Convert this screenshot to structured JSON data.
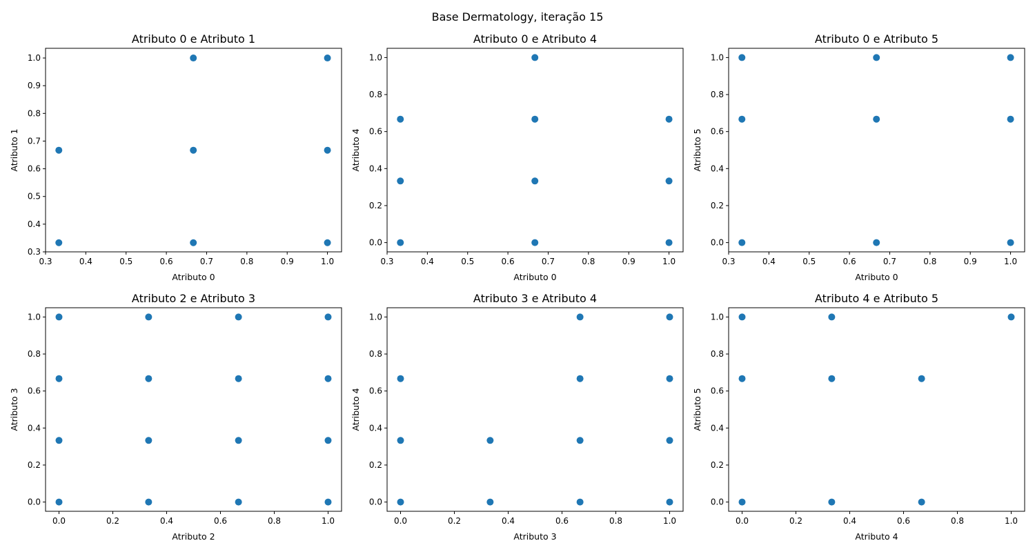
{
  "figure": {
    "title": "Base Dermatology, iteração 15",
    "marker_color": "#1f77b4"
  },
  "chart_data": [
    {
      "type": "scatter",
      "title": "Atributo 0 e Atributo 1",
      "xlabel": "Atributo 0",
      "ylabel": "Atributo 1",
      "xlim": [
        0.3,
        1.035
      ],
      "ylim": [
        0.3,
        1.035
      ],
      "xticks": [
        0.3,
        0.4,
        0.5,
        0.6,
        0.7,
        0.8,
        0.9,
        1.0
      ],
      "yticks": [
        0.3,
        0.4,
        0.5,
        0.6,
        0.7,
        0.8,
        0.9,
        1.0
      ],
      "points": [
        [
          0.333,
          0.333
        ],
        [
          0.333,
          0.667
        ],
        [
          0.667,
          0.333
        ],
        [
          0.667,
          0.667
        ],
        [
          0.667,
          1.0
        ],
        [
          1.0,
          0.333
        ],
        [
          1.0,
          0.667
        ],
        [
          1.0,
          1.0
        ]
      ]
    },
    {
      "type": "scatter",
      "title": "Atributo 0 e Atributo 4",
      "xlabel": "Atributo 0",
      "ylabel": "Atributo 4",
      "xlim": [
        0.3,
        1.035
      ],
      "ylim": [
        -0.05,
        1.05
      ],
      "xticks": [
        0.3,
        0.4,
        0.5,
        0.6,
        0.7,
        0.8,
        0.9,
        1.0
      ],
      "yticks": [
        0.0,
        0.2,
        0.4,
        0.6,
        0.8,
        1.0
      ],
      "points": [
        [
          0.333,
          0.0
        ],
        [
          0.333,
          0.333
        ],
        [
          0.333,
          0.667
        ],
        [
          0.667,
          0.0
        ],
        [
          0.667,
          0.333
        ],
        [
          0.667,
          0.667
        ],
        [
          0.667,
          1.0
        ],
        [
          1.0,
          0.0
        ],
        [
          1.0,
          0.333
        ],
        [
          1.0,
          0.667
        ]
      ]
    },
    {
      "type": "scatter",
      "title": "Atributo 0 e Atributo 5",
      "xlabel": "Atributo 0",
      "ylabel": "Atributo 5",
      "xlim": [
        0.3,
        1.035
      ],
      "ylim": [
        -0.05,
        1.05
      ],
      "xticks": [
        0.3,
        0.4,
        0.5,
        0.6,
        0.7,
        0.8,
        0.9,
        1.0
      ],
      "yticks": [
        0.0,
        0.2,
        0.4,
        0.6,
        0.8,
        1.0
      ],
      "points": [
        [
          0.333,
          0.0
        ],
        [
          0.333,
          0.667
        ],
        [
          0.333,
          1.0
        ],
        [
          0.667,
          0.0
        ],
        [
          0.667,
          0.667
        ],
        [
          0.667,
          1.0
        ],
        [
          1.0,
          0.0
        ],
        [
          1.0,
          0.667
        ],
        [
          1.0,
          1.0
        ]
      ]
    },
    {
      "type": "scatter",
      "title": "Atributo 2 e Atributo 3",
      "xlabel": "Atributo 2",
      "ylabel": "Atributo 3",
      "xlim": [
        -0.05,
        1.05
      ],
      "ylim": [
        -0.05,
        1.05
      ],
      "xticks": [
        0.0,
        0.2,
        0.4,
        0.6,
        0.8,
        1.0
      ],
      "yticks": [
        0.0,
        0.2,
        0.4,
        0.6,
        0.8,
        1.0
      ],
      "points": [
        [
          0.0,
          0.0
        ],
        [
          0.0,
          0.333
        ],
        [
          0.0,
          0.667
        ],
        [
          0.0,
          1.0
        ],
        [
          0.333,
          0.0
        ],
        [
          0.333,
          0.333
        ],
        [
          0.333,
          0.667
        ],
        [
          0.333,
          1.0
        ],
        [
          0.667,
          0.0
        ],
        [
          0.667,
          0.333
        ],
        [
          0.667,
          0.667
        ],
        [
          0.667,
          1.0
        ],
        [
          1.0,
          0.0
        ],
        [
          1.0,
          0.333
        ],
        [
          1.0,
          0.667
        ],
        [
          1.0,
          1.0
        ]
      ]
    },
    {
      "type": "scatter",
      "title": "Atributo 3 e Atributo 4",
      "xlabel": "Atributo 3",
      "ylabel": "Atributo 4",
      "xlim": [
        -0.05,
        1.05
      ],
      "ylim": [
        -0.05,
        1.05
      ],
      "xticks": [
        0.0,
        0.2,
        0.4,
        0.6,
        0.8,
        1.0
      ],
      "yticks": [
        0.0,
        0.2,
        0.4,
        0.6,
        0.8,
        1.0
      ],
      "points": [
        [
          0.0,
          0.0
        ],
        [
          0.0,
          0.333
        ],
        [
          0.0,
          0.667
        ],
        [
          0.333,
          0.0
        ],
        [
          0.333,
          0.333
        ],
        [
          0.667,
          0.0
        ],
        [
          0.667,
          0.333
        ],
        [
          0.667,
          0.667
        ],
        [
          0.667,
          1.0
        ],
        [
          1.0,
          0.0
        ],
        [
          1.0,
          0.333
        ],
        [
          1.0,
          0.667
        ],
        [
          1.0,
          1.0
        ]
      ]
    },
    {
      "type": "scatter",
      "title": "Atributo 4 e Atributo 5",
      "xlabel": "Atributo 4",
      "ylabel": "Atributo 5",
      "xlim": [
        -0.05,
        1.05
      ],
      "ylim": [
        -0.05,
        1.05
      ],
      "xticks": [
        0.0,
        0.2,
        0.4,
        0.6,
        0.8,
        1.0
      ],
      "yticks": [
        0.0,
        0.2,
        0.4,
        0.6,
        0.8,
        1.0
      ],
      "points": [
        [
          0.0,
          0.0
        ],
        [
          0.0,
          0.667
        ],
        [
          0.0,
          1.0
        ],
        [
          0.333,
          0.0
        ],
        [
          0.333,
          0.667
        ],
        [
          0.333,
          1.0
        ],
        [
          0.667,
          0.0
        ],
        [
          0.667,
          0.667
        ],
        [
          1.0,
          1.0
        ]
      ]
    }
  ]
}
